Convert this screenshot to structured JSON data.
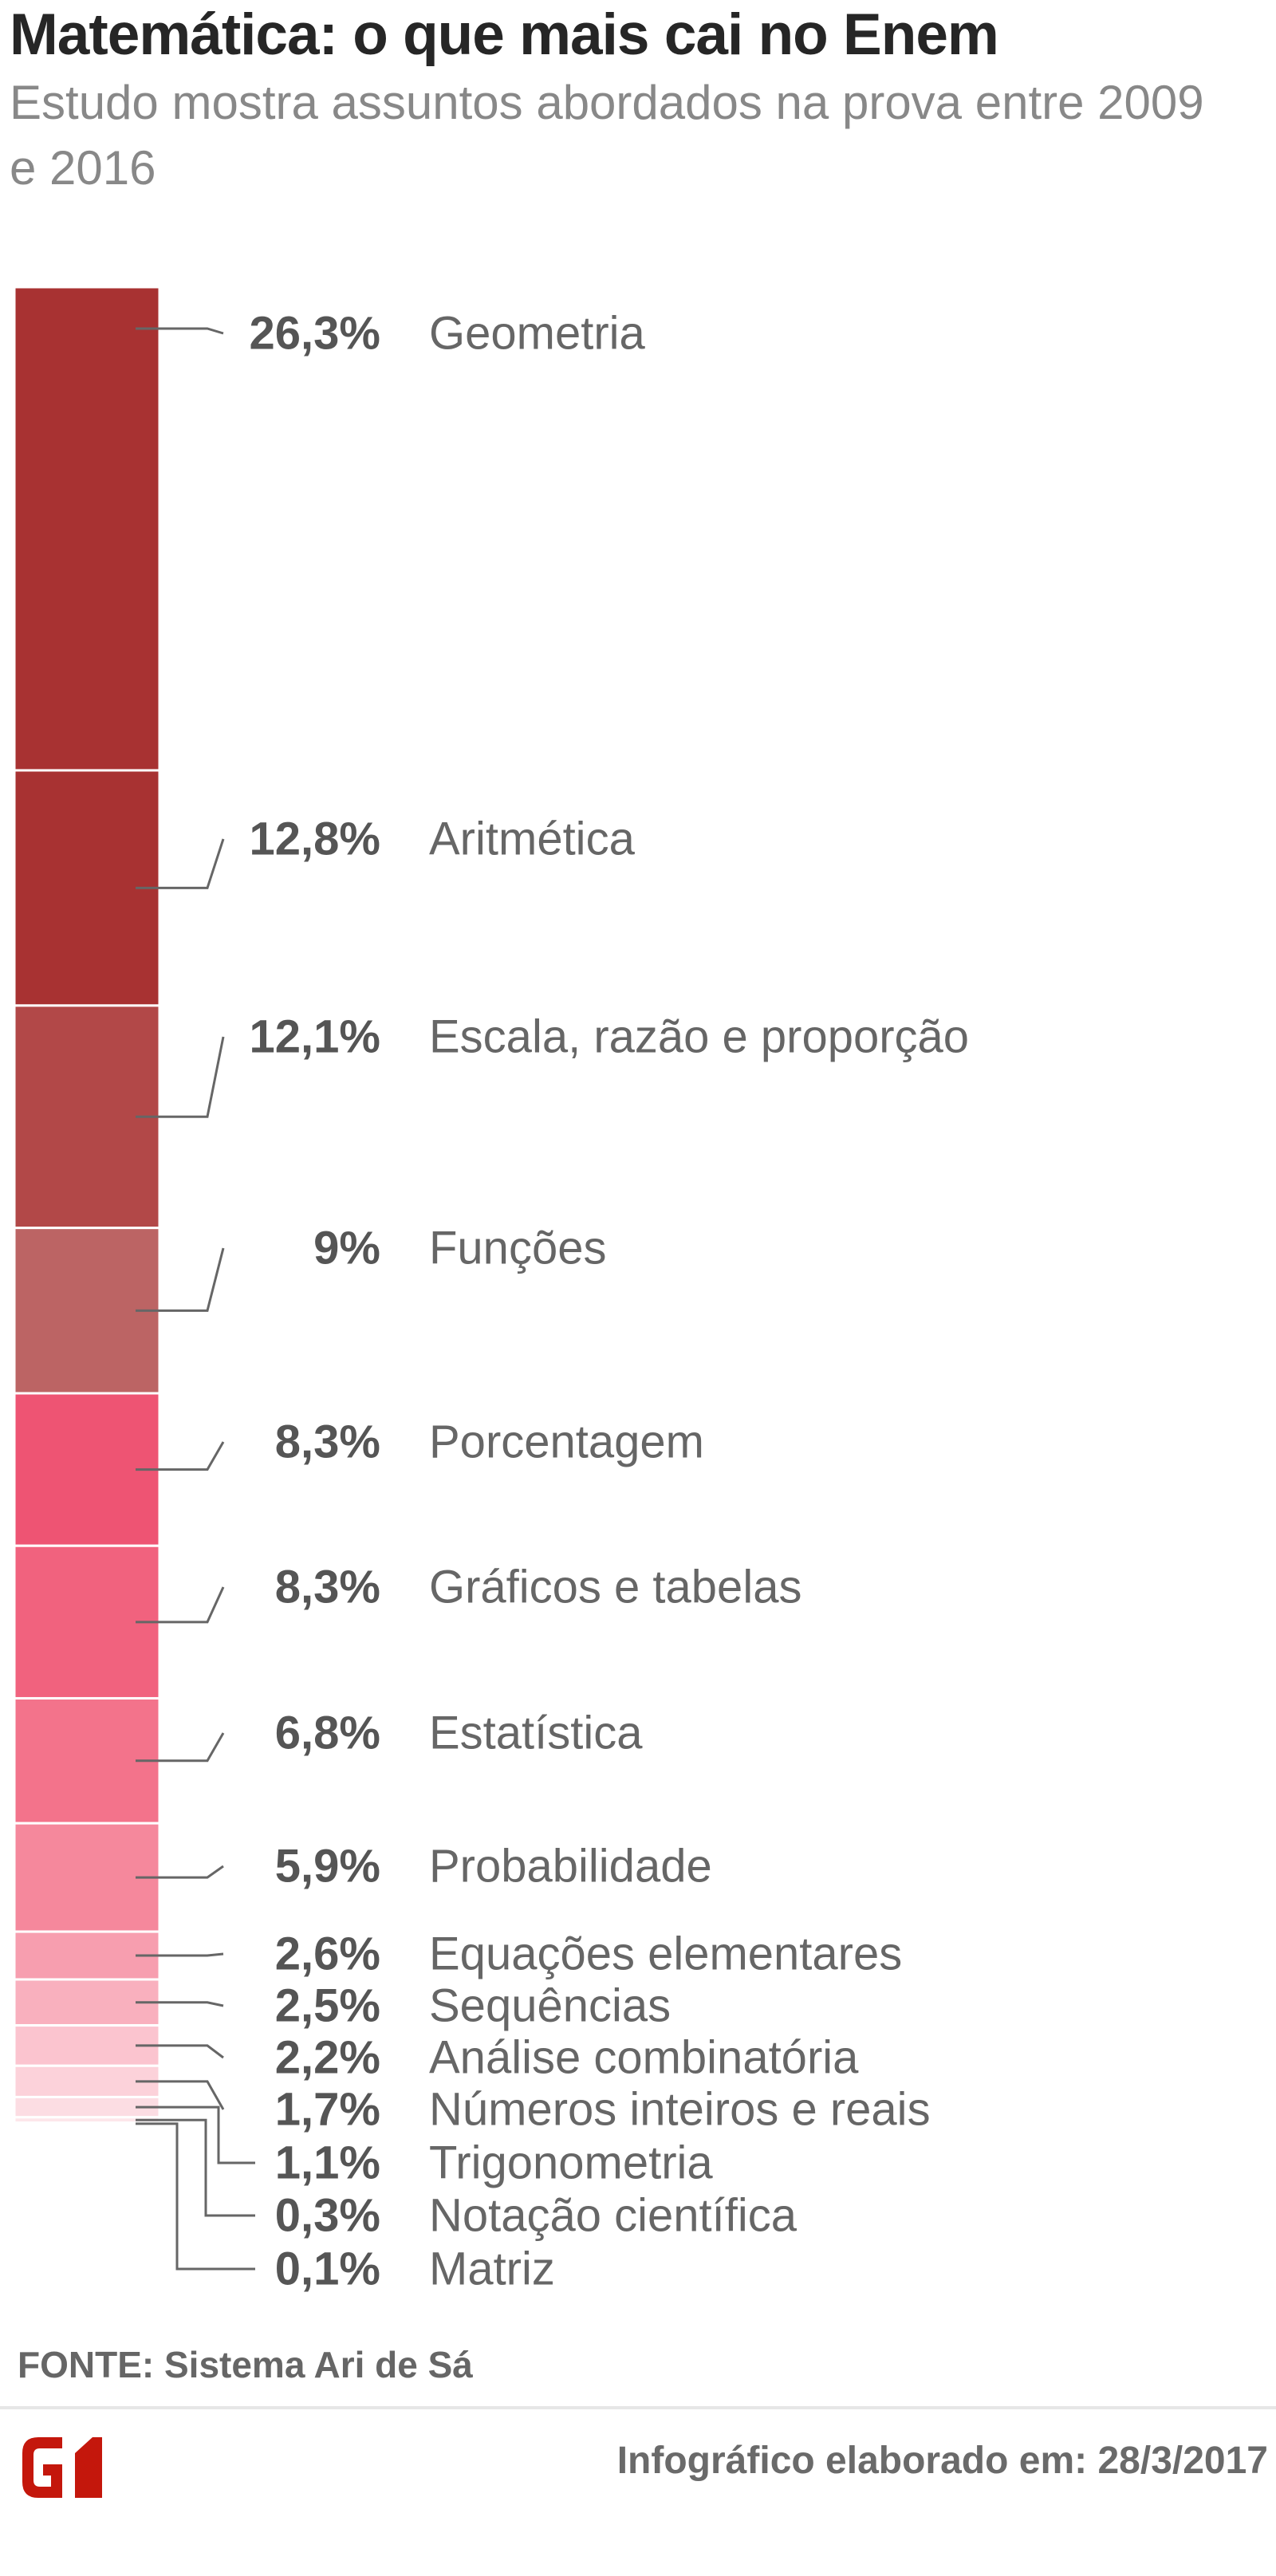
{
  "title": "Matemática: o que mais cai no Enem",
  "subtitle": "Estudo mostra assuntos abordados na prova entre 2009 e 2016",
  "chart_data": {
    "type": "bar",
    "orientation": "stacked-vertical",
    "categories": [
      "Geometria",
      "Aritmética",
      "Escala, razão e proporção",
      "Funções",
      "Porcentagem",
      "Gráficos e tabelas",
      "Estatística",
      "Probabilidade",
      "Equações elementares",
      "Sequências",
      "Análise combinatória",
      "Números inteiros e reais",
      "Trigonometria",
      "Notação científica",
      "Matriz"
    ],
    "values": [
      26.3,
      12.8,
      12.1,
      9,
      8.3,
      8.3,
      6.8,
      5.9,
      2.6,
      2.5,
      2.2,
      1.7,
      1.1,
      0.3,
      0.1
    ],
    "value_labels": [
      "26,3%",
      "12,8%",
      "12,1%",
      "9%",
      "8,3%",
      "8,3%",
      "6,8%",
      "5,9%",
      "2,6%",
      "2,5%",
      "2,2%",
      "1,7%",
      "1,1%",
      "0,3%",
      "0,1%"
    ],
    "colors": [
      "#a83232",
      "#a83232",
      "#b24848",
      "#bc6464",
      "#ee5473",
      "#f1627e",
      "#f3738b",
      "#f5889c",
      "#f79eaf",
      "#f9b0be",
      "#fbc4cf",
      "#fcd2da",
      "#fcdde3",
      "#fde6ea",
      "#feeef1"
    ]
  },
  "source": "FONTE: Sistema Ari de Sá",
  "logo": {
    "text": "G1",
    "icon": "g1-logo-icon",
    "color": "#c4170c"
  },
  "footer": "Infográfico elaborado em: 28/3/2017"
}
